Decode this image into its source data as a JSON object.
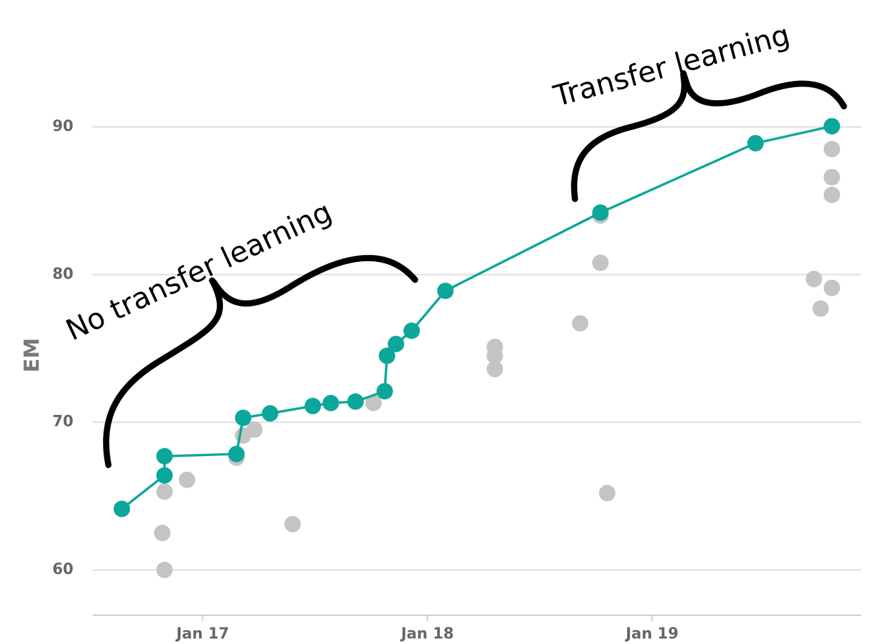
{
  "chart_data": {
    "type": "scatter",
    "ylabel": "EM",
    "annotations": [
      "No transfer learning",
      "Transfer learning"
    ],
    "xlim": [
      2016.51,
      2019.93
    ],
    "xticks": [
      {
        "value": 2017,
        "label": "Jan 17"
      },
      {
        "value": 2018,
        "label": "Jan 18"
      },
      {
        "value": 2019,
        "label": "Jan 19"
      }
    ],
    "ylim": [
      56.93,
      96
    ],
    "yticks": [
      60,
      70,
      80,
      90
    ],
    "grid": true,
    "series": [
      {
        "color": "#c4c4c4",
        "x": [
          2016.83,
          2016.82,
          2016.83,
          2016.93,
          2017.15,
          2017.18,
          2017.23,
          2017.4,
          2017.76,
          2018.3,
          2018.3,
          2018.3,
          2018.68,
          2018.77,
          2018.8,
          2018.77,
          2019.8,
          2019.8,
          2019.8,
          2019.72,
          2019.8,
          2019.75
        ],
        "values": [
          65.3,
          62.5,
          60.0,
          66.1,
          67.6,
          69.1,
          69.5,
          63.1,
          71.3,
          75.1,
          74.5,
          73.6,
          76.7,
          80.8,
          65.2,
          84.0,
          88.5,
          86.6,
          85.4,
          79.7,
          79.1,
          77.7
        ]
      },
      {
        "color": "#0ca79b",
        "line": true,
        "x": [
          2016.64,
          2016.83,
          2016.83,
          2017.15,
          2017.18,
          2017.3,
          2017.49,
          2017.57,
          2017.68,
          2017.81,
          2017.82,
          2017.86,
          2017.93,
          2018.08,
          2018.77,
          2019.46,
          2019.8
        ],
        "values": [
          64.13,
          66.4,
          67.7,
          67.85,
          70.3,
          70.6,
          71.1,
          71.3,
          71.4,
          72.1,
          74.5,
          75.3,
          76.2,
          78.9,
          84.2,
          88.9,
          90.05
        ]
      }
    ]
  }
}
